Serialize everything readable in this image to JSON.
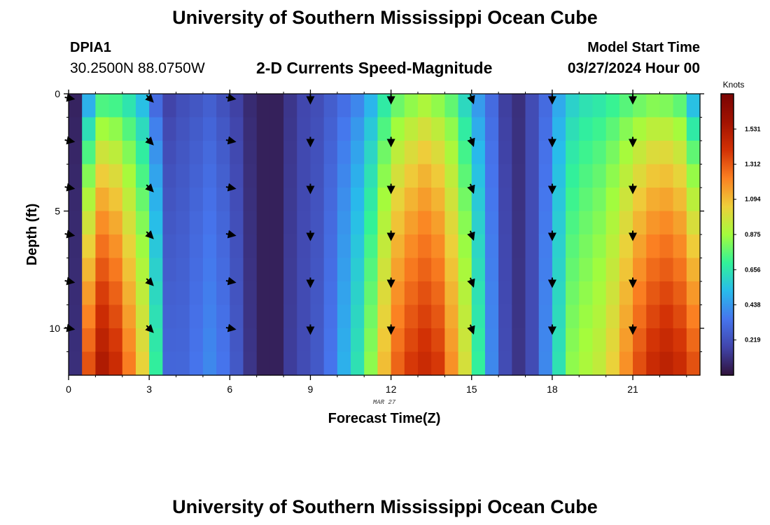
{
  "header": {
    "title": "University of Southern Mississippi Ocean Cube",
    "station_id": "DPIA1",
    "coords": "30.2500N  88.0750W",
    "subtitle": "2-D Currents Speed-Magnitude",
    "start_label": "Model Start Time",
    "start_time": "03/27/2024 Hour 00"
  },
  "footer": {
    "title": "University of Southern Mississippi Ocean Cube"
  },
  "chart_data": {
    "type": "heatmap",
    "title": "2-D Currents Speed-Magnitude",
    "xlabel": "Forecast Time(Z)",
    "ylabel": "Depth (ft)",
    "date_note": "MAR 27",
    "colorbar_unit": "Knots",
    "colorbar_ticks": [
      "1.531",
      "1.312",
      "1.094",
      "0.875",
      "0.656",
      "0.438",
      "0.219"
    ],
    "colorbar_tick_values": [
      1.531,
      1.312,
      1.094,
      0.875,
      0.656,
      0.438,
      0.219
    ],
    "colorbar_range": [
      0.0,
      1.75
    ],
    "xlim": [
      0,
      23.5
    ],
    "ylim": [
      0,
      12
    ],
    "x_ticks": [
      0,
      3,
      6,
      9,
      12,
      15,
      18,
      21
    ],
    "y_ticks": [
      0,
      5,
      10
    ],
    "time_hours": [
      0,
      0.5,
      1,
      1.5,
      2,
      2.5,
      3,
      3.5,
      4,
      4.5,
      5,
      5.5,
      6,
      6.5,
      7,
      7.5,
      8,
      8.5,
      9,
      9.5,
      10,
      10.5,
      11,
      11.5,
      12,
      12.5,
      13,
      13.5,
      14,
      14.5,
      15,
      15.5,
      16,
      16.5,
      17,
      17.5,
      18,
      18.5,
      19,
      19.5,
      20,
      20.5,
      21,
      21.5,
      22,
      22.5,
      23
    ],
    "depth_ft": [
      0,
      1,
      2,
      3,
      4,
      5,
      6,
      7,
      8,
      9,
      10,
      11
    ],
    "surface_speed_knots": [
      0.05,
      0.35,
      0.6,
      0.6,
      0.55,
      0.45,
      0.25,
      0.15,
      0.2,
      0.22,
      0.25,
      0.2,
      0.15,
      0.08,
      0.05,
      0.05,
      0.12,
      0.18,
      0.2,
      0.25,
      0.3,
      0.35,
      0.45,
      0.6,
      0.7,
      0.75,
      0.8,
      0.75,
      0.7,
      0.55,
      0.4,
      0.3,
      0.15,
      0.1,
      0.2,
      0.3,
      0.45,
      0.55,
      0.6,
      0.62,
      0.65,
      0.68,
      0.7,
      0.72,
      0.7,
      0.65,
      0.4
    ],
    "bottom_speed_knots": [
      0.1,
      1.35,
      1.55,
      1.45,
      1.25,
      1.05,
      0.7,
      0.3,
      0.3,
      0.35,
      0.4,
      0.35,
      0.25,
      0.12,
      0.05,
      0.05,
      0.15,
      0.2,
      0.25,
      0.35,
      0.5,
      0.65,
      0.85,
      1.1,
      1.3,
      1.4,
      1.45,
      1.4,
      1.2,
      1.0,
      0.7,
      0.4,
      0.2,
      0.12,
      0.2,
      0.4,
      0.65,
      0.85,
      0.9,
      0.95,
      1.05,
      1.2,
      1.35,
      1.45,
      1.5,
      1.45,
      1.35
    ],
    "arrows": {
      "hours": [
        0,
        3,
        6,
        9,
        12,
        15,
        18,
        21
      ],
      "depths_ft": [
        0,
        2,
        4,
        6,
        8,
        10
      ],
      "direction_deg": [
        100,
        135,
        100,
        180,
        180,
        160,
        180,
        180
      ]
    }
  }
}
